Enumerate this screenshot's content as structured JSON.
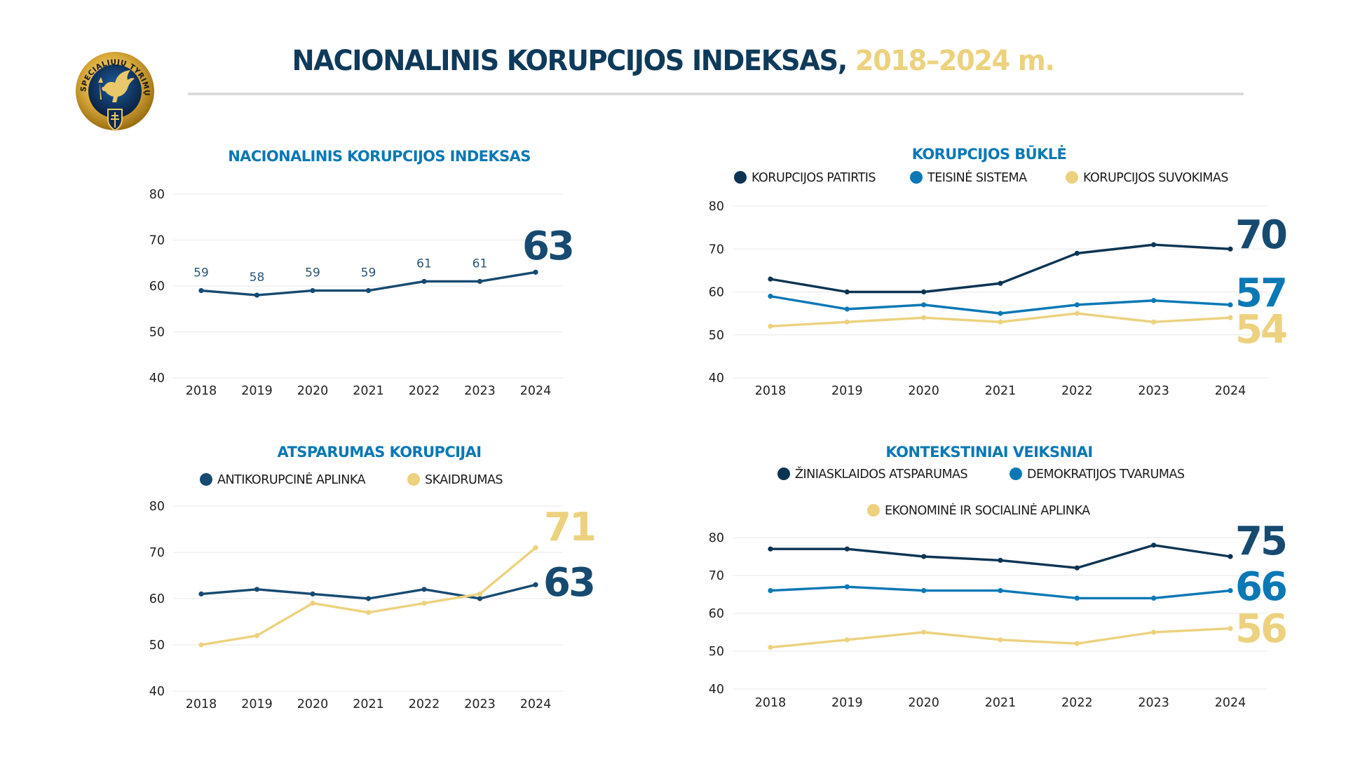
{
  "header": {
    "title_main": "NACIONALINIS KORUPCIJOS INDEKSAS,",
    "title_accent": "2018–2024 m.",
    "logo_text": "SPECIALIŲJŲ TYRIMŲ TARNYBA"
  },
  "colors": {
    "navy": "#123f63",
    "dark": "#0c3452",
    "blue": "#0a78b5",
    "gold": "#ecd27f",
    "title_blue": "#0a78b5"
  },
  "chart_data": [
    {
      "id": "nki",
      "type": "line",
      "title": "NACIONALINIS KORUPCIJOS INDEKSAS",
      "x": [
        "2018",
        "2019",
        "2020",
        "2021",
        "2022",
        "2023",
        "2024"
      ],
      "yticks": [
        "40",
        "50",
        "60",
        "70",
        "80"
      ],
      "ylim": [
        40,
        80
      ],
      "grid": true,
      "legend": "none",
      "series": [
        {
          "name": "Nacionalinis korupcijos indeksas",
          "color": "#174a70",
          "values": [
            59,
            58,
            59,
            59,
            61,
            61,
            63
          ],
          "point_labels": true
        }
      ],
      "end_labels": [
        {
          "text": "63",
          "color": "#174a70"
        }
      ]
    },
    {
      "id": "bukle",
      "type": "line",
      "title": "KORUPCIJOS BŪKLĖ",
      "x": [
        "2018",
        "2019",
        "2020",
        "2021",
        "2022",
        "2023",
        "2024"
      ],
      "yticks": [
        "40",
        "50",
        "60",
        "70",
        "80"
      ],
      "ylim": [
        40,
        80
      ],
      "grid": true,
      "legend": "top",
      "series": [
        {
          "name": "KORUPCIJOS PATIRTIS",
          "color": "#0c3452",
          "values": [
            63,
            60,
            60,
            62,
            69,
            71,
            70
          ]
        },
        {
          "name": "TEISINĖ SISTEMA",
          "color": "#0a78b5",
          "values": [
            59,
            56,
            57,
            55,
            57,
            58,
            57
          ]
        },
        {
          "name": "KORUPCIJOS SUVOKIMAS",
          "color": "#ecd27f",
          "values": [
            52,
            53,
            54,
            53,
            55,
            53,
            54
          ]
        }
      ],
      "end_labels": [
        {
          "text": "70",
          "color": "#174a70"
        },
        {
          "text": "57",
          "color": "#0a78b5"
        },
        {
          "text": "54",
          "color": "#ecd27f"
        }
      ]
    },
    {
      "id": "atsparumas",
      "type": "line",
      "title": "ATSPARUMAS KORUPCIJAI",
      "x": [
        "2018",
        "2019",
        "2020",
        "2021",
        "2022",
        "2023",
        "2024"
      ],
      "yticks": [
        "40",
        "50",
        "60",
        "70",
        "80"
      ],
      "ylim": [
        40,
        80
      ],
      "grid": true,
      "legend": "top",
      "series": [
        {
          "name": "ANTIKORUPCINĖ APLINKA",
          "color": "#174a70",
          "values": [
            61,
            62,
            61,
            60,
            62,
            60,
            63
          ]
        },
        {
          "name": "SKAIDRUMAS",
          "color": "#ecd27f",
          "values": [
            50,
            52,
            59,
            57,
            59,
            61,
            71
          ]
        }
      ],
      "end_labels": [
        {
          "text": "71",
          "color": "#ecd27f"
        },
        {
          "text": "63",
          "color": "#174a70"
        }
      ]
    },
    {
      "id": "kontekstiniai",
      "type": "line",
      "title": "KONTEKSTINIAI VEIKSNIAI",
      "x": [
        "2018",
        "2019",
        "2020",
        "2021",
        "2022",
        "2023",
        "2024"
      ],
      "yticks": [
        "40",
        "50",
        "60",
        "70",
        "80"
      ],
      "ylim": [
        40,
        80
      ],
      "grid": true,
      "legend": "top",
      "series": [
        {
          "name": "ŽINIASKLAIDOS ATSPARUMAS",
          "color": "#0c3452",
          "values": [
            77,
            77,
            75,
            74,
            72,
            78,
            75
          ]
        },
        {
          "name": "DEMOKRATIJOS TVARUMAS",
          "color": "#0a78b5",
          "values": [
            66,
            67,
            66,
            66,
            64,
            64,
            66
          ]
        },
        {
          "name": "EKONOMINĖ IR SOCIALINĖ APLINKA",
          "color": "#ecd27f",
          "values": [
            51,
            53,
            55,
            53,
            52,
            55,
            56
          ]
        }
      ],
      "end_labels": [
        {
          "text": "75",
          "color": "#174a70"
        },
        {
          "text": "66",
          "color": "#0a78b5"
        },
        {
          "text": "56",
          "color": "#ecd27f"
        }
      ]
    }
  ]
}
